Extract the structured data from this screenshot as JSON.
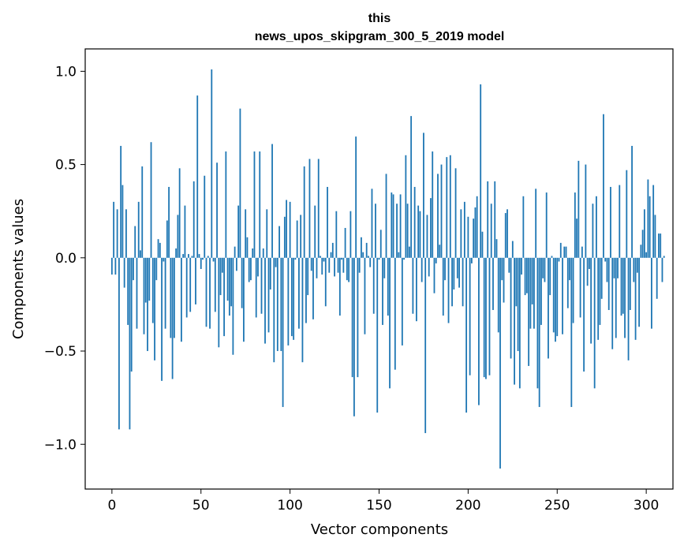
{
  "chart_data": {
    "type": "bar",
    "title_line1": "this",
    "title_line2": "news_upos_skipgram_300_5_2019 model",
    "xlabel": "Vector components",
    "ylabel": "Components values",
    "xlim": [
      -15,
      315
    ],
    "ylim": [
      -1.24,
      1.12
    ],
    "xticks": [
      0,
      50,
      100,
      150,
      200,
      250,
      300
    ],
    "xtick_labels": [
      "0",
      "50",
      "100",
      "150",
      "200",
      "250",
      "300"
    ],
    "yticks": [
      -1.0,
      -0.5,
      0.0,
      0.5,
      1.0
    ],
    "ytick_labels": [
      "−1.0",
      "−0.5",
      "0.0",
      "0.5",
      "1.0"
    ],
    "bar_color": "#1f77b4",
    "values": [
      -0.09,
      0.3,
      -0.09,
      0.26,
      -0.92,
      0.6,
      0.39,
      -0.16,
      0.26,
      -0.36,
      -0.92,
      -0.61,
      -0.12,
      0.17,
      -0.38,
      0.3,
      0.04,
      0.49,
      -0.41,
      -0.24,
      -0.5,
      -0.23,
      0.62,
      -0.35,
      -0.55,
      -0.12,
      0.1,
      0.08,
      -0.66,
      -0.02,
      -0.38,
      0.2,
      0.38,
      -0.43,
      -0.65,
      -0.43,
      0.05,
      0.23,
      0.48,
      -0.45,
      0.02,
      0.28,
      -0.32,
      0.02,
      -0.29,
      0.01,
      0.41,
      -0.25,
      0.87,
      0.02,
      -0.06,
      -0.01,
      0.44,
      -0.37,
      0.01,
      -0.38,
      1.01,
      -0.02,
      -0.29,
      0.51,
      -0.48,
      -0.2,
      -0.08,
      -0.42,
      0.57,
      -0.23,
      -0.31,
      -0.26,
      -0.52,
      0.06,
      -0.07,
      0.28,
      0.8,
      -0.27,
      -0.45,
      0.26,
      0.11,
      -0.13,
      -0.12,
      0.05,
      0.57,
      -0.32,
      -0.1,
      0.57,
      -0.3,
      0.05,
      -0.46,
      0.26,
      -0.4,
      -0.17,
      0.61,
      -0.56,
      -0.05,
      -0.5,
      0.17,
      -0.5,
      -0.8,
      0.22,
      0.31,
      -0.47,
      0.3,
      -0.42,
      -0.44,
      -0.01,
      0.2,
      -0.38,
      0.23,
      -0.56,
      0.49,
      -0.35,
      -0.2,
      0.53,
      -0.07,
      -0.33,
      0.28,
      -0.11,
      0.53,
      0.01,
      -0.09,
      -0.02,
      -0.26,
      0.38,
      -0.08,
      0.03,
      0.08,
      -0.1,
      0.25,
      -0.08,
      -0.31,
      -0.01,
      -0.08,
      0.16,
      -0.12,
      -0.13,
      0.25,
      -0.64,
      -0.85,
      0.65,
      -0.64,
      -0.08,
      0.11,
      0.03,
      -0.41,
      0.08,
      0.01,
      -0.05,
      0.37,
      -0.3,
      0.29,
      -0.83,
      -0.01,
      0.15,
      -0.36,
      -0.11,
      0.45,
      -0.31,
      -0.7,
      0.35,
      0.34,
      -0.6,
      0.29,
      0.03,
      0.34,
      -0.47,
      -0.01,
      0.55,
      0.29,
      0.06,
      0.76,
      -0.3,
      0.38,
      -0.34,
      0.28,
      0.25,
      -0.13,
      0.67,
      -0.94,
      0.23,
      -0.1,
      0.32,
      0.57,
      -0.19,
      -0.03,
      0.45,
      0.07,
      0.5,
      -0.31,
      -0.12,
      0.54,
      -0.35,
      0.55,
      -0.26,
      -0.17,
      0.48,
      -0.11,
      -0.16,
      0.26,
      -0.26,
      0.3,
      -0.83,
      0.22,
      -0.63,
      -0.03,
      0.21,
      0.27,
      0.33,
      -0.79,
      0.93,
      0.14,
      -0.64,
      -0.65,
      0.41,
      -0.63,
      0.29,
      -0.28,
      0.41,
      0.1,
      -0.4,
      -1.13,
      -0.12,
      -0.24,
      0.24,
      0.26,
      -0.08,
      -0.54,
      0.09,
      -0.68,
      -0.26,
      -0.5,
      -0.7,
      -0.09,
      0.33,
      -0.2,
      -0.19,
      -0.58,
      -0.38,
      -0.25,
      -0.38,
      0.37,
      -0.7,
      -0.8,
      -0.36,
      -0.11,
      -0.13,
      0.35,
      -0.54,
      -0.2,
      0.01,
      -0.4,
      -0.45,
      -0.42,
      -0.02,
      0.08,
      -0.41,
      0.06,
      0.06,
      -0.27,
      -0.12,
      -0.8,
      -0.35,
      0.35,
      0.21,
      0.52,
      -0.32,
      0.06,
      -0.61,
      0.5,
      -0.15,
      -0.06,
      -0.46,
      0.29,
      -0.7,
      0.33,
      -0.44,
      -0.36,
      -0.22,
      0.77,
      -0.02,
      -0.13,
      -0.28,
      0.38,
      -0.49,
      -0.11,
      -0.43,
      -0.11,
      0.39,
      -0.31,
      -0.3,
      -0.43,
      0.47,
      -0.55,
      -0.28,
      0.6,
      -0.13,
      -0.44,
      -0.08,
      -0.37,
      0.07,
      0.15,
      0.26,
      0.03,
      0.42,
      0.33,
      -0.38,
      0.39,
      0.23,
      -0.22,
      0.13,
      0.13,
      -0.13,
      0.01
    ]
  }
}
